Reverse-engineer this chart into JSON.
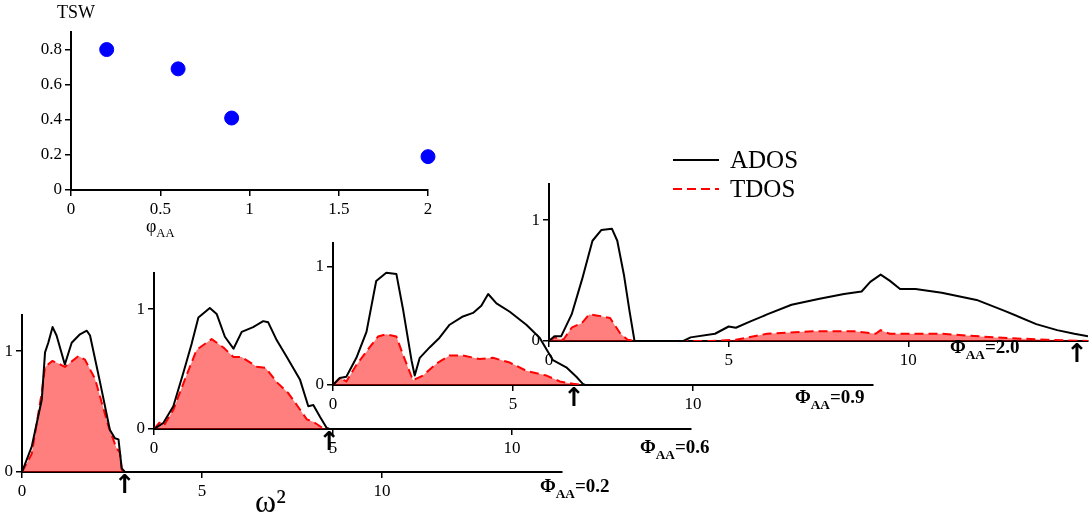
{
  "chart_data": [
    {
      "type": "scatter",
      "xlabel": "φ$_{AA}$",
      "ylabel": "TSW",
      "x": [
        0.2,
        0.6,
        0.9,
        2
      ],
      "values": [
        0.8,
        0.69,
        0.41,
        0.19
      ],
      "color": "#0000ff",
      "marker": "circle",
      "grid": false,
      "xlim": [
        0,
        2
      ],
      "ylim": [
        0,
        0.9
      ],
      "xticks": [
        0,
        0.5,
        1,
        1.5,
        2
      ],
      "yticks": [
        0,
        0.2,
        0.4,
        0.6,
        0.8
      ]
    },
    {
      "type": "line",
      "xlabel": "ω²",
      "xlim": [
        0,
        15
      ],
      "ylim": [
        0,
        1.3
      ],
      "xticks": [
        0,
        5,
        10
      ],
      "yticks": [
        0,
        1
      ],
      "grid": false,
      "marker": "none",
      "annotations": [
        "Φ$_{AA}$=0.2",
        {
          "text": "↑",
          "x": 2.86,
          "y": 0
        }
      ],
      "series": [
        {
          "type": "line",
          "color": "#000000",
          "line_style": "solid",
          "x": [
            0,
            0.27,
            0.55,
            0.64,
            0.73,
            0.85,
            0.96,
            1.19,
            1.38,
            1.61,
            1.8,
            1.89,
            2.17,
            2.44,
            2.58,
            2.68,
            2.77,
            2.86,
            15
          ],
          "values": [
            0,
            0.21,
            0.6,
            0.99,
            1.07,
            1.2,
            1.13,
            0.89,
            1.07,
            1.14,
            1.17,
            1.13,
            0.74,
            0.35,
            0.28,
            0.27,
            0.03,
            0,
            0
          ]
        },
        {
          "type": "area",
          "color": "#ff0000",
          "line_style": "dashed",
          "x": [
            0,
            0.27,
            0.55,
            0.64,
            0.84,
            1.0,
            1.19,
            1.57,
            1.75,
            2.03,
            2.4,
            2.62,
            2.72,
            2.77,
            2.86,
            15
          ],
          "values": [
            0,
            0.15,
            0.66,
            0.87,
            0.92,
            0.9,
            0.87,
            0.96,
            0.93,
            0.77,
            0.38,
            0.2,
            0.16,
            0.02,
            0,
            0
          ]
        }
      ]
    },
    {
      "type": "line",
      "xlim": [
        0,
        15
      ],
      "ylim": [
        0,
        1.3
      ],
      "xticks": [
        0,
        5,
        10
      ],
      "yticks": [
        0,
        1
      ],
      "grid": false,
      "marker": "none",
      "annotations": [
        "Φ$_{AA}$=0.6",
        {
          "text": "↑",
          "x": 4.9,
          "y": 0
        }
      ],
      "series": [
        {
          "type": "line",
          "color": "#000000",
          "line_style": "solid",
          "x": [
            0,
            0.26,
            0.54,
            0.82,
            1.05,
            1.24,
            1.56,
            1.75,
            1.98,
            2.22,
            2.45,
            2.77,
            3.05,
            3.19,
            3.43,
            3.71,
            4.08,
            4.31,
            4.45,
            4.64,
            4.82,
            4.9,
            15
          ],
          "values": [
            0,
            0.05,
            0.19,
            0.47,
            0.71,
            0.93,
            1.01,
            0.96,
            0.77,
            0.67,
            0.81,
            0.85,
            0.9,
            0.89,
            0.74,
            0.6,
            0.41,
            0.19,
            0.2,
            0.1,
            0.01,
            0,
            0
          ]
        },
        {
          "type": "area",
          "color": "#ff0000",
          "line_style": "dashed",
          "x": [
            0,
            0.17,
            0.3,
            0.54,
            0.91,
            1.19,
            1.61,
            1.94,
            2.22,
            2.45,
            2.87,
            3.12,
            3.43,
            3.75,
            3.99,
            4.27,
            4.45,
            4.7,
            4.9,
            15
          ],
          "values": [
            0,
            0.06,
            0.04,
            0.16,
            0.45,
            0.66,
            0.75,
            0.68,
            0.6,
            0.6,
            0.52,
            0.51,
            0.39,
            0.3,
            0.2,
            0.08,
            0.06,
            0.01,
            0,
            0
          ]
        }
      ]
    },
    {
      "type": "line",
      "xlim": [
        0,
        15
      ],
      "ylim": [
        0,
        1.2
      ],
      "xticks": [
        0,
        5,
        10
      ],
      "yticks": [
        0,
        1
      ],
      "grid": false,
      "marker": "none",
      "annotations": [
        "Φ$_{AA}$=0.9",
        {
          "text": "↑",
          "x": 6.7,
          "y": 0
        }
      ],
      "series": [
        {
          "type": "line",
          "color": "#000000",
          "line_style": "solid",
          "x": [
            0,
            0.19,
            0.37,
            0.65,
            0.93,
            1.2,
            1.48,
            1.76,
            1.94,
            2.18,
            2.27,
            2.41,
            2.69,
            2.96,
            3.24,
            3.61,
            3.89,
            4.12,
            4.31,
            4.54,
            4.91,
            5.37,
            5.74,
            6.11,
            6.48,
            6.76,
            6.94,
            7.0,
            15
          ],
          "values": [
            0,
            0.06,
            0.07,
            0.23,
            0.45,
            0.88,
            0.95,
            0.94,
            0.65,
            0.21,
            0.08,
            0.23,
            0.32,
            0.4,
            0.51,
            0.58,
            0.61,
            0.67,
            0.77,
            0.69,
            0.62,
            0.51,
            0.4,
            0.21,
            0.15,
            0.07,
            0.01,
            0,
            0
          ]
        },
        {
          "type": "area",
          "color": "#ff0000",
          "line_style": "dashed",
          "x": [
            0,
            0.19,
            0.37,
            0.65,
            1.02,
            1.25,
            1.48,
            1.76,
            1.94,
            2.22,
            2.5,
            2.87,
            3.24,
            3.61,
            4.07,
            4.44,
            4.91,
            5.37,
            5.93,
            6.3,
            6.67,
            7.0,
            15
          ],
          "values": [
            0,
            0.06,
            0.03,
            0.17,
            0.32,
            0.41,
            0.43,
            0.41,
            0.26,
            0.04,
            0.08,
            0.18,
            0.25,
            0.25,
            0.22,
            0.23,
            0.19,
            0.12,
            0.08,
            0.03,
            0.01,
            0,
            0
          ]
        }
      ]
    },
    {
      "type": "line",
      "xlim": [
        0,
        15
      ],
      "ylim": [
        0,
        1.3
      ],
      "xticks": [
        0,
        5,
        10
      ],
      "yticks": [
        0,
        1
      ],
      "grid": false,
      "marker": "none",
      "legend": "top",
      "annotations": [
        "Φ$_{AA}$=2.0",
        {
          "text": "↑",
          "x": 14.7,
          "y": 0
        }
      ],
      "series": [
        {
          "type": "line",
          "name": "ADOS",
          "color": "#000000",
          "line_style": "solid",
          "x": [
            0,
            0.15,
            0.34,
            0.63,
            0.92,
            1.21,
            1.46,
            1.75,
            1.9,
            2.09,
            2.24,
            2.38,
            3.74,
            3.94,
            4.62,
            5.0,
            5.2,
            5.59,
            6.07,
            6.75,
            7.53,
            8.21,
            8.7,
            8.94,
            9.23,
            9.48,
            9.77,
            10.2,
            10.93,
            11.9,
            12.68,
            13.56,
            14.14,
            14.62,
            15
          ],
          "values": [
            0,
            0.04,
            0.04,
            0.22,
            0.51,
            0.83,
            0.92,
            0.93,
            0.83,
            0.54,
            0.25,
            0,
            0,
            0.03,
            0.06,
            0.12,
            0.11,
            0.16,
            0.22,
            0.3,
            0.35,
            0.39,
            0.41,
            0.49,
            0.55,
            0.5,
            0.43,
            0.43,
            0.4,
            0.34,
            0.25,
            0.14,
            0.09,
            0.06,
            0.04
          ]
        },
        {
          "type": "area",
          "name": "TDOS",
          "color": "#ff0000",
          "line_style": "dashed",
          "x": [
            0,
            0.15,
            0.4,
            0.63,
            0.92,
            1.12,
            1.36,
            1.7,
            1.99,
            2.19,
            2.4,
            4.5,
            5.2,
            6.07,
            7.34,
            8.5,
            9.09,
            9.23,
            9.48,
            10.93,
            12.39,
            13.85,
            15
          ],
          "values": [
            0,
            0.03,
            0.01,
            0.11,
            0.15,
            0.22,
            0.21,
            0.19,
            0.06,
            0.01,
            0,
            0,
            0.01,
            0.06,
            0.08,
            0.08,
            0.06,
            0.09,
            0.06,
            0.06,
            0.03,
            0.01,
            0
          ]
        }
      ]
    }
  ]
}
